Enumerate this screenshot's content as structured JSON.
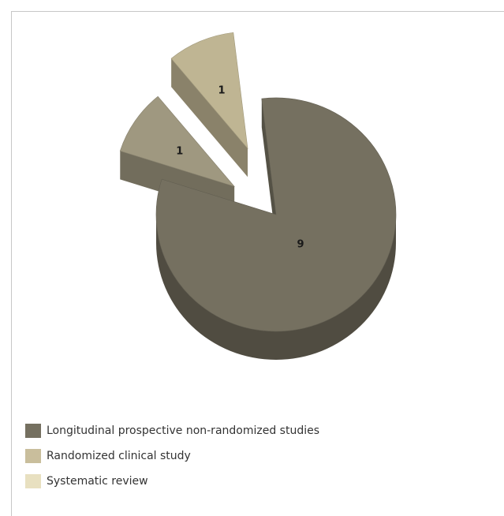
{
  "chart_data": {
    "type": "pie",
    "style": "3d-exploded",
    "categories": [
      "Longitudinal prospective non-randomized studies",
      "Randomized clinical study",
      "Systematic review"
    ],
    "values": [
      9,
      1,
      1
    ],
    "data_labels": [
      "9",
      "1",
      "1"
    ],
    "legend_position": "bottom-left"
  },
  "colors": {
    "series": [
      "#757060",
      "#9f9880",
      "#bfb593"
    ],
    "swatches": [
      "#757060",
      "#c9be9c",
      "#e8e0c0"
    ]
  }
}
